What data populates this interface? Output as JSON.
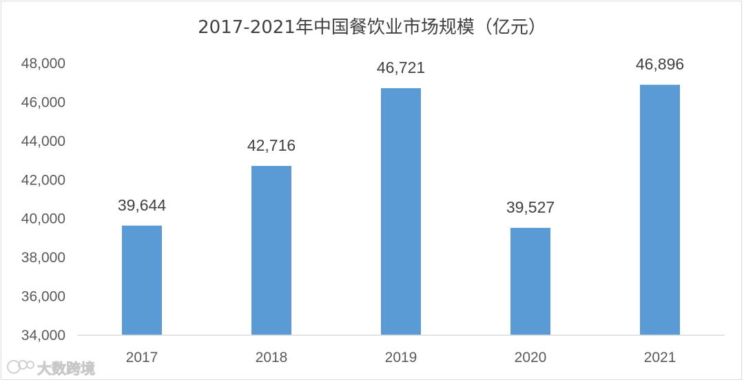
{
  "chart_data": {
    "type": "bar",
    "title": "2017-2021年中国餐饮业市场规模（亿元）",
    "categories": [
      "2017",
      "2018",
      "2019",
      "2020",
      "2021"
    ],
    "values": [
      39644,
      42716,
      46721,
      39527,
      46896
    ],
    "value_labels": [
      "39,644",
      "42,716",
      "46,721",
      "39,527",
      "46,896"
    ],
    "y_ticks": [
      "34,000",
      "36,000",
      "38,000",
      "40,000",
      "42,000",
      "44,000",
      "46,000",
      "48,000"
    ],
    "ylim": [
      34000,
      48000
    ],
    "bar_color": "#5b9bd5",
    "grid": false,
    "legend": "none"
  },
  "watermark": {
    "text": "大数跨境",
    "icon": "logo-icon"
  }
}
